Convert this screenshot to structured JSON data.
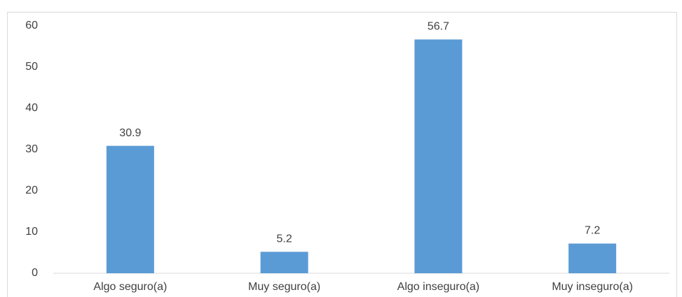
{
  "chart_data": {
    "type": "bar",
    "categories": [
      "Algo seguro(a)",
      "Muy seguro(a)",
      "Algo inseguro(a)",
      "Muy inseguro(a)"
    ],
    "values": [
      30.9,
      5.2,
      56.7,
      7.2
    ],
    "color": "#5b9bd5",
    "ylim": [
      0,
      60
    ],
    "yticks": [
      0,
      10,
      20,
      30,
      40,
      50,
      60
    ],
    "grid": false
  }
}
